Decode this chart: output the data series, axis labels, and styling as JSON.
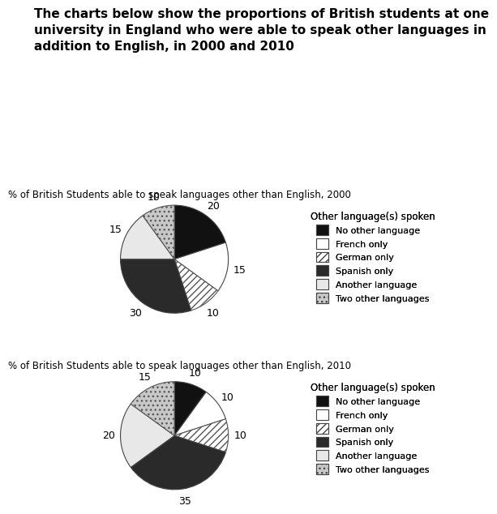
{
  "title": "The charts below show the proportions of British students at one\nuniversity in England who were able to speak other languages in\naddition to English, in 2000 and 2010",
  "chart1_title": "% of British Students able to speak languages other than English, 2000",
  "chart2_title": "% of British Students able to speak languages other than English, 2010",
  "legend_title": "Other language(s) spoken",
  "legend_labels": [
    "No other language",
    "French only",
    "German only",
    "Spanish only",
    "Another language",
    "Two other languages"
  ],
  "year2000": {
    "values": [
      20,
      15,
      10,
      30,
      15,
      10
    ],
    "labels": [
      "20",
      "15",
      "10",
      "30",
      "15",
      "10"
    ]
  },
  "year2010": {
    "values": [
      10,
      10,
      10,
      35,
      20,
      15
    ],
    "labels": [
      "10",
      "10",
      "10",
      "35",
      "20",
      "15"
    ]
  },
  "background": "#ffffff",
  "title_fontsize": 11,
  "subtitle_fontsize": 8.5,
  "label_fontsize": 9
}
